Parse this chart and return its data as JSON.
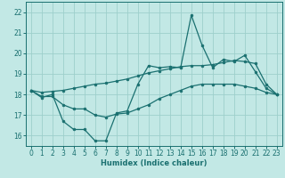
{
  "xlabel": "Humidex (Indice chaleur)",
  "background_color": "#c2e8e5",
  "grid_color": "#9ecfcb",
  "line_color": "#1a7070",
  "xlim": [
    -0.5,
    23.5
  ],
  "ylim": [
    15.5,
    22.5
  ],
  "yticks": [
    16,
    17,
    18,
    19,
    20,
    21,
    22
  ],
  "xticks": [
    0,
    1,
    2,
    3,
    4,
    5,
    6,
    7,
    8,
    9,
    10,
    11,
    12,
    13,
    14,
    15,
    16,
    17,
    18,
    19,
    20,
    21,
    22,
    23
  ],
  "line1_x": [
    0,
    1,
    2,
    3,
    4,
    5,
    6,
    7,
    8,
    9,
    10,
    11,
    12,
    13,
    14,
    15,
    16,
    17,
    18,
    19,
    20,
    21,
    22,
    23
  ],
  "line1_y": [
    18.2,
    17.85,
    18.0,
    16.7,
    16.3,
    16.3,
    15.75,
    15.75,
    17.1,
    17.2,
    18.5,
    19.4,
    19.3,
    19.35,
    19.3,
    21.85,
    20.4,
    19.3,
    19.7,
    19.6,
    19.9,
    19.1,
    18.3,
    18.0
  ],
  "line2_x": [
    0,
    1,
    2,
    3,
    4,
    5,
    6,
    7,
    8,
    9,
    10,
    11,
    12,
    13,
    14,
    15,
    16,
    17,
    18,
    19,
    20,
    21,
    22,
    23
  ],
  "line2_y": [
    18.2,
    18.1,
    18.15,
    18.2,
    18.3,
    18.4,
    18.5,
    18.55,
    18.65,
    18.75,
    18.9,
    19.05,
    19.15,
    19.25,
    19.35,
    19.4,
    19.4,
    19.45,
    19.55,
    19.65,
    19.6,
    19.5,
    18.5,
    18.0
  ],
  "line3_x": [
    0,
    1,
    2,
    3,
    4,
    5,
    6,
    7,
    8,
    9,
    10,
    11,
    12,
    13,
    14,
    15,
    16,
    17,
    18,
    19,
    20,
    21,
    22,
    23
  ],
  "line3_y": [
    18.2,
    17.9,
    17.9,
    17.5,
    17.3,
    17.3,
    17.0,
    16.9,
    17.05,
    17.1,
    17.3,
    17.5,
    17.8,
    18.0,
    18.2,
    18.4,
    18.5,
    18.5,
    18.5,
    18.5,
    18.4,
    18.3,
    18.1,
    18.0
  ]
}
